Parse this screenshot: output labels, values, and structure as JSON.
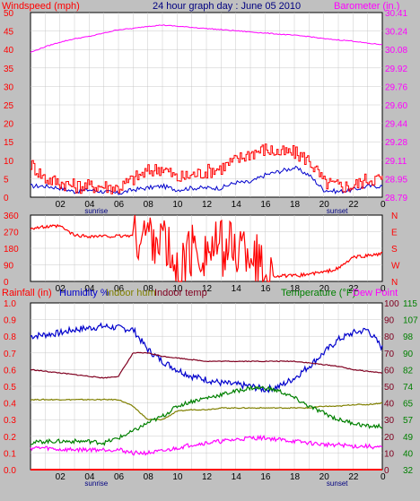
{
  "title": "24 hour graph day : June 05 2010",
  "colors": {
    "background": "#c0c0c0",
    "plot_bg": "#ffffff",
    "grid": "#c8c8c8",
    "wind_avg": "#0000cc",
    "wind_gust": "#ff0000",
    "barometer": "#ff00ff",
    "direction": "#ff0000",
    "humidity": "#0000cc",
    "indoor_hum": "#808000",
    "indoor_temp": "#800020",
    "temperature": "#008000",
    "dew_point": "#ff00ff",
    "rainfall": "#ff0000"
  },
  "x_ticks": [
    "02",
    "04",
    "06",
    "08",
    "10",
    "12",
    "14",
    "16",
    "18",
    "20",
    "22",
    "0"
  ],
  "sunrise_label": "sunrise",
  "sunset_label": "sunset",
  "chart_data": [
    {
      "type": "line",
      "title": "24 hour graph day : June 05 2010",
      "left_axis_label": "Windspeed (mph)",
      "right_axis_label": "Barometer (in.)",
      "left_ticks": [
        "0",
        "5",
        "10",
        "15",
        "20",
        "25",
        "30",
        "35",
        "40",
        "45",
        "50"
      ],
      "right_ticks": [
        "28.79",
        "28.95",
        "29.11",
        "29.28",
        "29.44",
        "29.60",
        "29.76",
        "29.92",
        "30.08",
        "30.24",
        "30.41"
      ],
      "ylim_left": [
        0,
        50
      ],
      "ylim_right": [
        28.79,
        30.41
      ],
      "x_hours": [
        0,
        1,
        2,
        3,
        4,
        5,
        6,
        7,
        8,
        9,
        10,
        11,
        12,
        13,
        14,
        15,
        16,
        17,
        18,
        19,
        20,
        21,
        22,
        23,
        24
      ],
      "series": [
        {
          "name": "Windspeed (mph)",
          "axis": "left",
          "values": [
            3,
            3,
            2.5,
            1.5,
            2,
            1.5,
            1,
            2,
            2.5,
            3,
            2,
            2.5,
            2.5,
            2.5,
            4,
            4,
            6,
            7,
            8,
            6,
            2,
            1.5,
            2,
            3,
            3
          ]
        },
        {
          "name": "wind gust",
          "axis": "left",
          "values": [
            9,
            5,
            4,
            3,
            3,
            3,
            2.5,
            5,
            7,
            8,
            5,
            6,
            7,
            8,
            10,
            12,
            13,
            12,
            12,
            10,
            4,
            3,
            3,
            5,
            5
          ]
        },
        {
          "name": "Barometer (in.)",
          "axis": "right",
          "values": [
            30.06,
            30.11,
            30.15,
            30.18,
            30.2,
            30.23,
            30.26,
            30.27,
            30.29,
            30.3,
            30.29,
            30.28,
            30.27,
            30.26,
            30.25,
            30.24,
            30.23,
            30.22,
            30.21,
            30.2,
            30.18,
            30.17,
            30.16,
            30.14,
            30.13
          ]
        }
      ]
    },
    {
      "type": "line",
      "left_ticks": [
        "0",
        "90",
        "180",
        "270",
        "360"
      ],
      "right_ticks": [
        "N",
        "W",
        "S",
        "E",
        "N"
      ],
      "ylim": [
        0,
        360
      ],
      "x_hours": [
        0,
        1,
        2,
        3,
        4,
        5,
        6,
        7,
        8,
        9,
        10,
        11,
        12,
        13,
        14,
        15,
        16,
        17,
        18,
        19,
        20,
        21,
        22,
        23,
        24
      ],
      "series": [
        {
          "name": "wind direction",
          "values": [
            290,
            295,
            300,
            250,
            245,
            245,
            245,
            250,
            260,
            240,
            20,
            170,
            170,
            180,
            180,
            175,
            30,
            30,
            30,
            40,
            50,
            70,
            130,
            140,
            150
          ]
        }
      ]
    },
    {
      "type": "line",
      "left_axis_label": "Rainfall (in)",
      "right_axis_label": "Temperature (°F)",
      "left_ticks": [
        "0.0",
        "0.1",
        "0.2",
        "0.3",
        "0.4",
        "0.5",
        "0.6",
        "0.7",
        "0.8",
        "0.9",
        "1.0"
      ],
      "humidity_ticks": [
        "0",
        "10",
        "20",
        "30",
        "40",
        "50",
        "60",
        "70",
        "80",
        "90",
        "100"
      ],
      "temp_ticks": [
        "32",
        "40",
        "49",
        "57",
        "65",
        "74",
        "82",
        "90",
        "98",
        "107",
        "115"
      ],
      "ylim_rain": [
        0,
        1.0
      ],
      "ylim_humidity": [
        0,
        100
      ],
      "ylim_temp": [
        32,
        115
      ],
      "x_hours": [
        0,
        1,
        2,
        3,
        4,
        5,
        6,
        7,
        8,
        9,
        10,
        11,
        12,
        13,
        14,
        15,
        16,
        17,
        18,
        19,
        20,
        21,
        22,
        23,
        24
      ],
      "series": [
        {
          "name": "Humidity %",
          "axis": "humidity",
          "values": [
            80,
            81,
            82,
            84,
            85,
            86,
            85,
            84,
            72,
            65,
            60,
            56,
            54,
            52,
            51,
            50,
            48,
            50,
            55,
            62,
            70,
            78,
            82,
            84,
            73
          ]
        },
        {
          "name": "Indoor hum",
          "axis": "humidity",
          "values": [
            42,
            42,
            42,
            42,
            42,
            42,
            42,
            38,
            30,
            30,
            35,
            36,
            36,
            37,
            37,
            37,
            37,
            37,
            37,
            37,
            38,
            38,
            39,
            39,
            40
          ]
        },
        {
          "name": "Indoor temp",
          "axis": "humidity",
          "values": [
            60,
            59,
            58,
            57,
            56,
            55,
            56,
            70,
            70,
            68,
            67,
            66,
            65,
            65,
            65,
            65,
            65,
            65,
            65,
            64,
            63,
            62,
            60,
            59,
            58
          ]
        },
        {
          "name": "Temperature",
          "axis": "humidity",
          "values": [
            16,
            17,
            17,
            17,
            17,
            16,
            19,
            23,
            28,
            32,
            38,
            41,
            43,
            45,
            47,
            49,
            49,
            47,
            43,
            38,
            34,
            30,
            28,
            26,
            26
          ]
        },
        {
          "name": "Dew Point",
          "axis": "humidity",
          "values": [
            13,
            13,
            12,
            12,
            12,
            12,
            12,
            10,
            10,
            11,
            13,
            15,
            16,
            17,
            18,
            19,
            19,
            18,
            17,
            16,
            15,
            15,
            14,
            14,
            13
          ]
        },
        {
          "name": "Rainfall (in)",
          "axis": "rain",
          "values": [
            0,
            0,
            0,
            0,
            0,
            0,
            0,
            0,
            0,
            0,
            0,
            0,
            0,
            0,
            0,
            0,
            0,
            0,
            0,
            0,
            0,
            0,
            0,
            0,
            0
          ]
        }
      ]
    }
  ],
  "labels": {
    "humidity": "Humidity %",
    "indoor_hum": "Indoor hum",
    "indoor_temp": "Indoor temp",
    "dew_point": "Dew Point"
  }
}
